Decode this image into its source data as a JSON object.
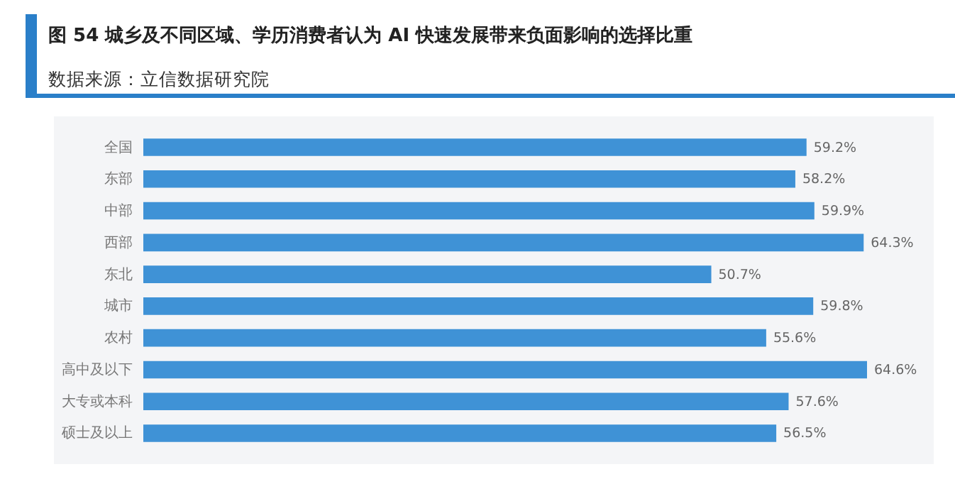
{
  "chart_data": {
    "type": "bar",
    "orientation": "horizontal",
    "title": "图 54 城乡及不同区域、学历消费者认为 AI 快速发展带来负面影响的选择比重",
    "subtitle": "数据来源：立信数据研究院",
    "categories": [
      "全国",
      "东部",
      "中部",
      "西部",
      "东北",
      "城市",
      "农村",
      "高中及以下",
      "大专或本科",
      "硕士及以上"
    ],
    "values": [
      59.2,
      58.2,
      59.9,
      64.3,
      50.7,
      59.8,
      55.6,
      64.6,
      57.6,
      56.5
    ],
    "value_labels": [
      "59.2%",
      "58.2%",
      "59.9%",
      "64.3%",
      "50.7%",
      "59.8%",
      "55.6%",
      "64.6%",
      "57.6%",
      "56.5%"
    ],
    "color": "#3f92d6",
    "grid": false
  }
}
